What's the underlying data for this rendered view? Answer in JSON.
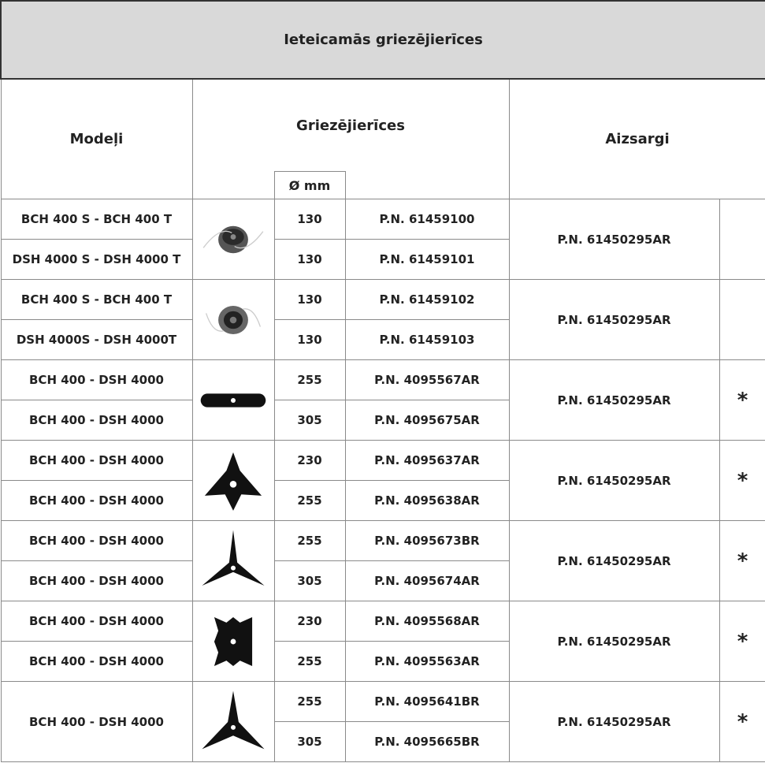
{
  "header": {
    "title": "Ieteicamās griezējierīces"
  },
  "table": {
    "columns": {
      "models": "Modeļi",
      "cutters": "Griezējierīces",
      "diameter": "Ø mm",
      "guards": "Aizsargi"
    },
    "groups": [
      {
        "rows": [
          {
            "model": "BCH 400 S - BCH 400 T",
            "diameter": 130,
            "part": "P.N. 61459100"
          },
          {
            "model": "DSH 4000 S - DSH 4000 T",
            "diameter": 130,
            "part": "P.N. 61459101"
          }
        ],
        "guard": "P.N. 61450295AR"
      },
      {
        "rows": [
          {
            "model": "BCH 400 S - BCH 400 T",
            "diameter": 130,
            "part": "P.N. 61459102"
          },
          {
            "model": "DSH 4000S - DSH 4000T",
            "diameter": 130,
            "part": "P.N. 61459103"
          }
        ],
        "guard": "P.N. 61450295AR"
      },
      {
        "rows": [
          {
            "model": "BCH 400 - DSH 4000",
            "diameter": 255,
            "part": "P.N. 4095567AR"
          },
          {
            "model": "BCH 400 - DSH 4000",
            "diameter": 305,
            "part": "P.N. 4095675AR"
          }
        ],
        "guard": "P.N. 61450295AR",
        "note": "*"
      },
      {
        "rows": [
          {
            "model": "BCH 400 - DSH 4000",
            "diameter": 230,
            "part": "P.N. 4095637AR"
          },
          {
            "model": "BCH 400 - DSH 4000",
            "diameter": 255,
            "part": "P.N. 4095638AR"
          }
        ],
        "guard": "P.N. 61450295AR",
        "note": "*"
      },
      {
        "rows": [
          {
            "model": "BCH 400 - DSH 4000",
            "diameter": 255,
            "part": "P.N. 4095673BR"
          },
          {
            "model": "BCH 400 - DSH 4000",
            "diameter": 305,
            "part": "P.N. 4095674AR"
          }
        ],
        "guard": "P.N. 61450295AR",
        "note": "*"
      },
      {
        "rows": [
          {
            "model": "BCH 400 - DSH 4000",
            "diameter": 230,
            "part": "P.N. 4095568AR"
          },
          {
            "model": "BCH 400 - DSH 4000",
            "diameter": 255,
            "part": "P.N. 4095563AR"
          }
        ],
        "guard": "P.N. 61450295AR",
        "note": "*"
      },
      {
        "model": "BCH 400 - DSH 4000",
        "rows": [
          {
            "diameter": 255,
            "part": "P.N. 4095641BR"
          },
          {
            "diameter": 305,
            "part": "P.N. 4095665BR"
          }
        ],
        "guard": "P.N. 61450295AR",
        "note": "*"
      }
    ]
  }
}
